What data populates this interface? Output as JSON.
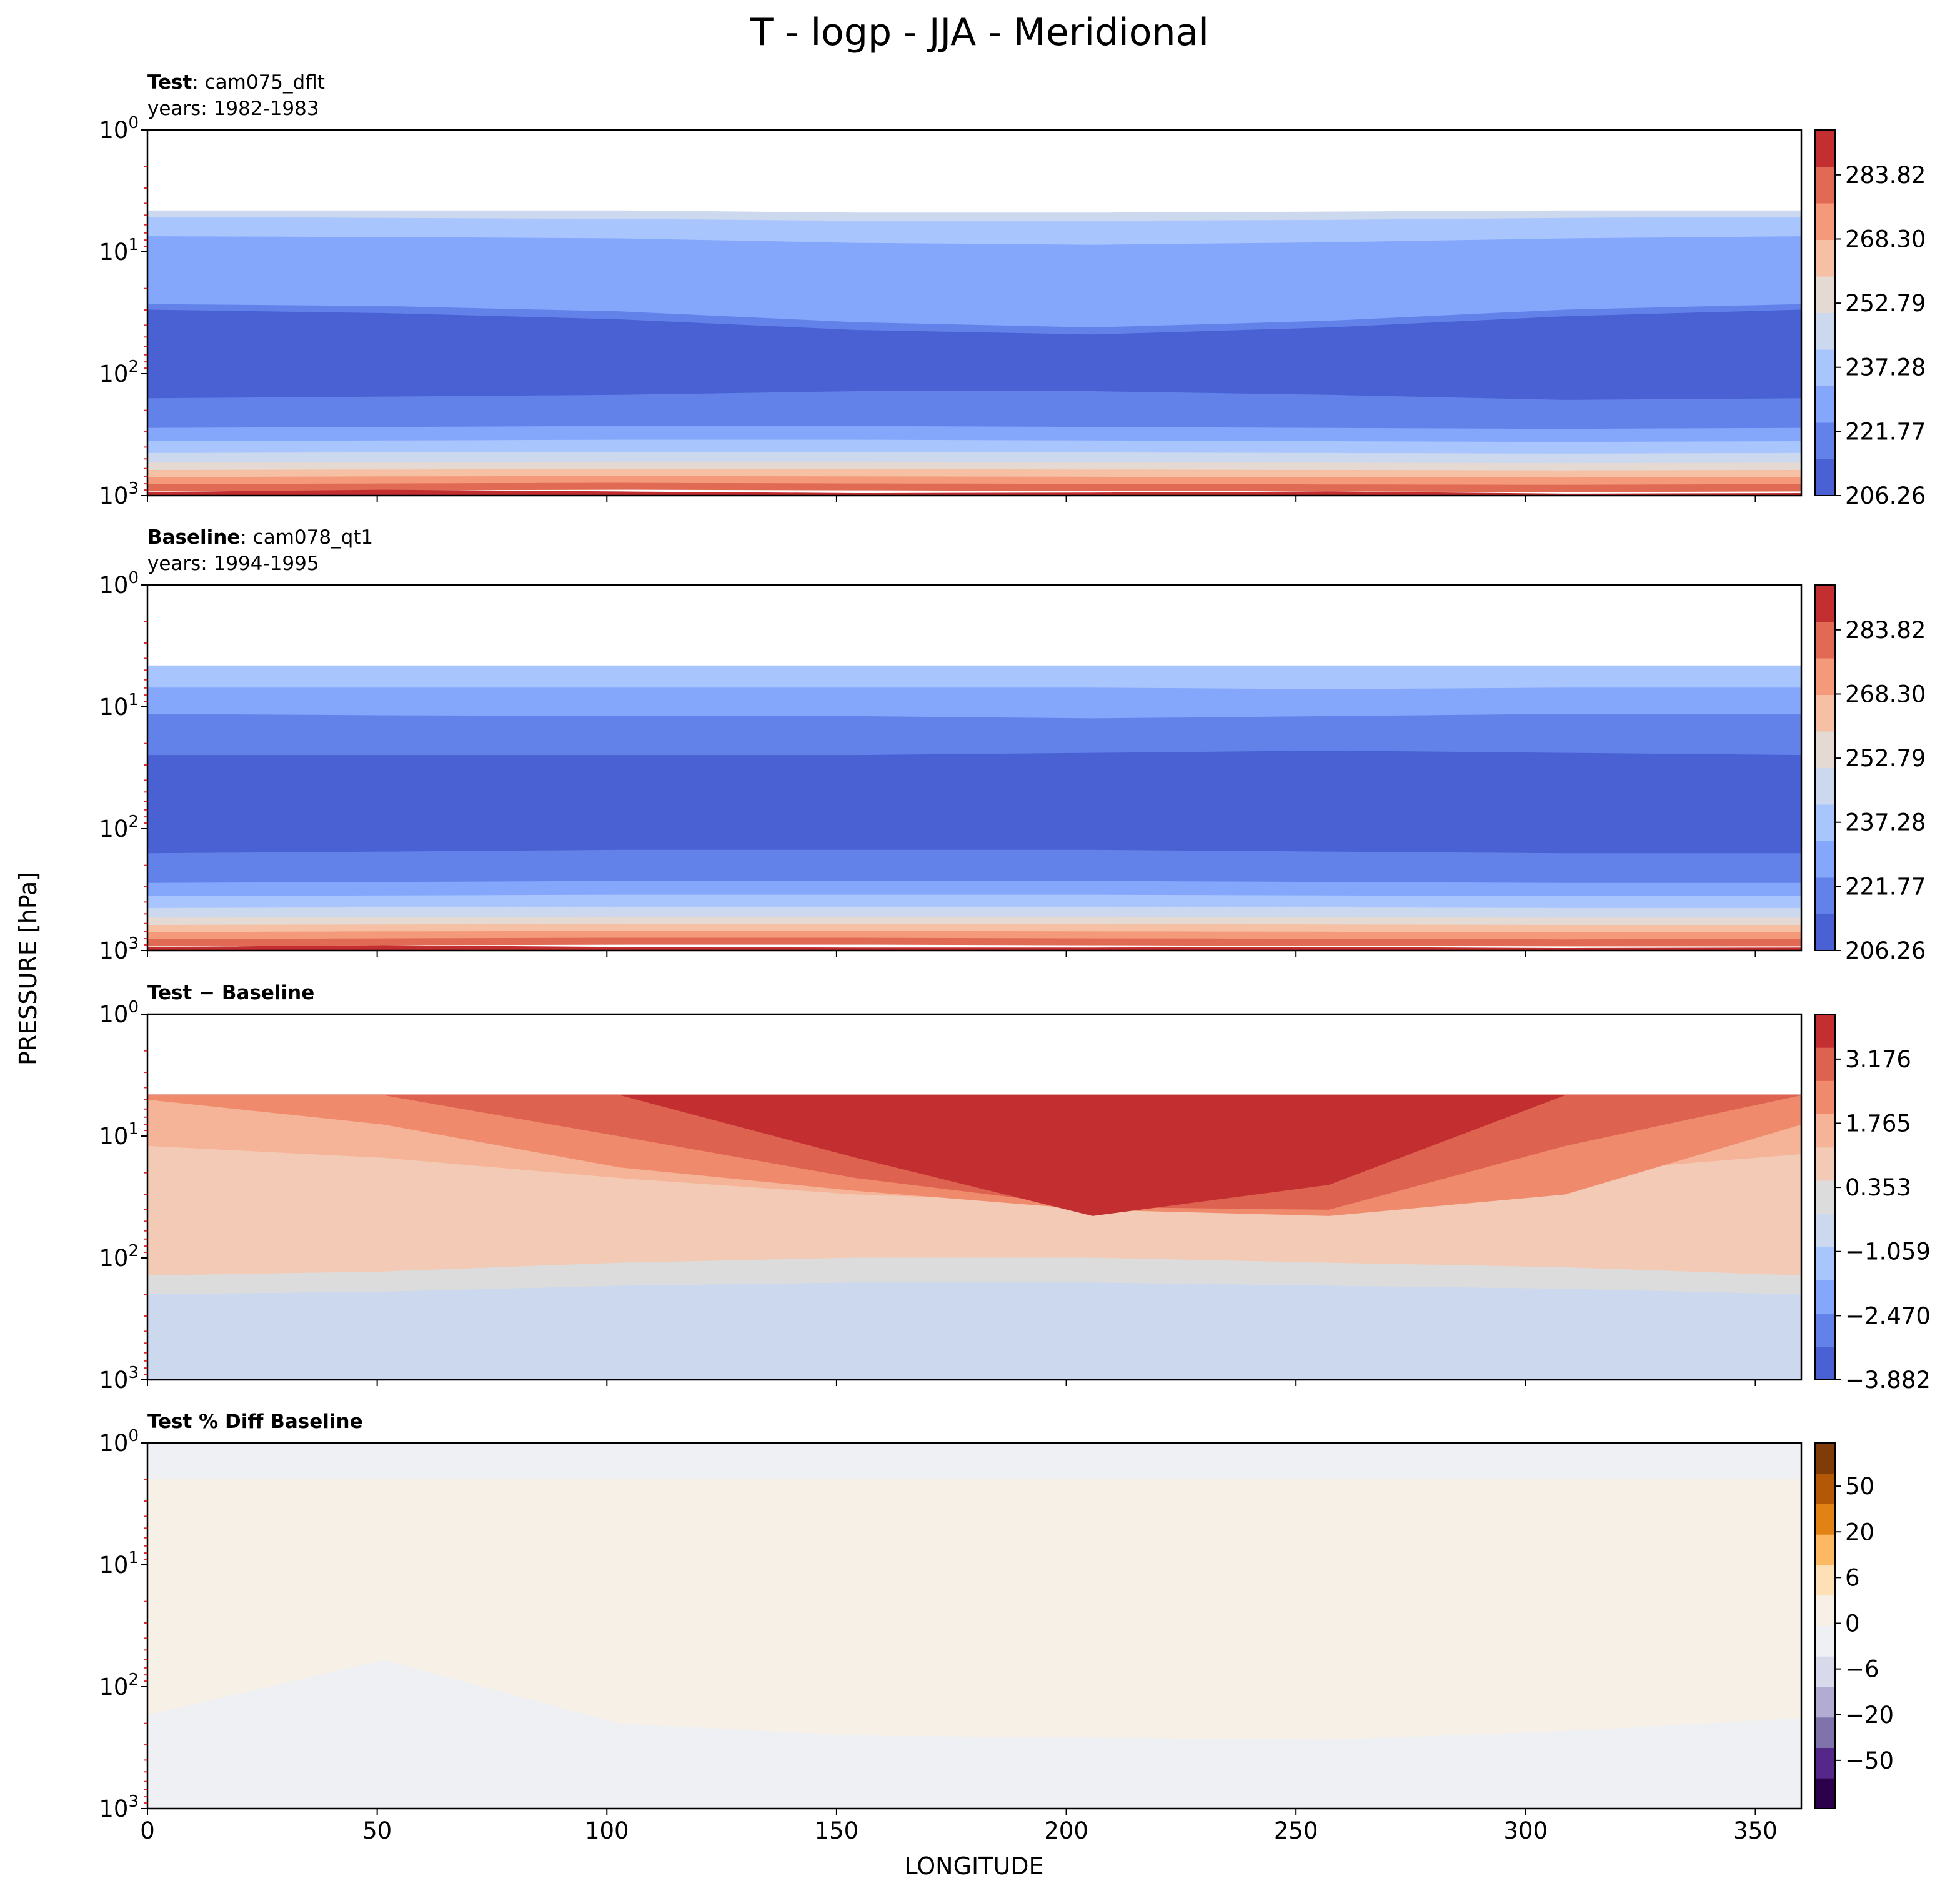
{
  "figure": {
    "title": "T - logp - JJA - Meridional",
    "ylabel": "PRESSURE [hPa]",
    "xlabel": "LONGITUDE"
  },
  "chart_data": [
    {
      "type": "heatmap",
      "id": "test",
      "header_bold": "Test",
      "header_rest": ": cam075_dflt",
      "header_line2": "years: 1982-1983",
      "x_range": [
        0,
        360
      ],
      "x_ticks": [
        0,
        50,
        100,
        150,
        200,
        250,
        300,
        350
      ],
      "y_scale": "log",
      "y_range_hpa": [
        1,
        1000
      ],
      "y_ticks": [
        {
          "base": "10",
          "exp": "0"
        },
        {
          "base": "10",
          "exp": "1"
        },
        {
          "base": "10",
          "exp": "2"
        },
        {
          "base": "10",
          "exp": "3"
        }
      ],
      "colorbar_ticks": [
        "206.26",
        "221.77",
        "237.28",
        "252.79",
        "268.30",
        "283.82"
      ],
      "colorbar_colors": [
        "#4961d2",
        "#6282ea",
        "#84a6fb",
        "#a9c5fe",
        "#cbd8ee",
        "#e4d9d3",
        "#f5c0a3",
        "#f49a7b",
        "#e06a53",
        "#c32e31"
      ],
      "contour_bands": [
        {
          "color": "#cbd8ee",
          "top": [
            4.6,
            4.6,
            4.6,
            4.8,
            4.8,
            4.7,
            4.6,
            4.6
          ],
          "bottom": [
            5.2,
            5.3,
            5.4,
            5.6,
            5.6,
            5.5,
            5.3,
            5.2
          ]
        },
        {
          "color": "#a9c5fe",
          "top": [
            5.2,
            5.3,
            5.4,
            5.6,
            5.6,
            5.5,
            5.3,
            5.2
          ],
          "bottom": [
            7.5,
            7.6,
            7.8,
            8.5,
            8.8,
            8.4,
            7.8,
            7.5
          ]
        },
        {
          "color": "#84a6fb",
          "top": [
            7.5,
            7.6,
            7.8,
            8.5,
            8.8,
            8.4,
            7.8,
            7.5
          ],
          "bottom": [
            27,
            28,
            31,
            38,
            42,
            37,
            30,
            27
          ]
        },
        {
          "color": "#6282ea",
          "top": [
            27,
            28,
            31,
            38,
            42,
            37,
            30,
            27
          ],
          "bottom": [
            170,
            165,
            160,
            150,
            150,
            160,
            175,
            170
          ]
        },
        {
          "color": "#4961d2",
          "top": [
            30,
            32,
            36,
            44,
            48,
            42,
            34,
            30
          ],
          "bottom": [
            160,
            155,
            150,
            140,
            140,
            150,
            165,
            160
          ]
        },
        {
          "color": "#6282ea",
          "top": [
            160,
            155,
            150,
            140,
            140,
            150,
            165,
            160
          ],
          "bottom": [
            280,
            275,
            270,
            270,
            275,
            280,
            285,
            280
          ]
        },
        {
          "color": "#84a6fb",
          "top": [
            280,
            275,
            270,
            270,
            275,
            280,
            285,
            280
          ],
          "bottom": [
            360,
            355,
            350,
            350,
            355,
            360,
            365,
            360
          ]
        },
        {
          "color": "#a9c5fe",
          "top": [
            360,
            355,
            350,
            350,
            355,
            360,
            365,
            360
          ],
          "bottom": [
            450,
            445,
            440,
            440,
            445,
            450,
            455,
            450
          ]
        },
        {
          "color": "#cbd8ee",
          "top": [
            450,
            445,
            440,
            440,
            445,
            450,
            455,
            450
          ],
          "bottom": [
            540,
            535,
            530,
            530,
            535,
            540,
            545,
            540
          ]
        },
        {
          "color": "#e4d9d3",
          "top": [
            540,
            535,
            530,
            530,
            535,
            540,
            545,
            540
          ],
          "bottom": [
            620,
            615,
            610,
            610,
            615,
            620,
            625,
            620
          ]
        },
        {
          "color": "#f5c0a3",
          "top": [
            620,
            615,
            610,
            610,
            615,
            620,
            625,
            620
          ],
          "bottom": [
            710,
            700,
            695,
            700,
            705,
            710,
            715,
            710
          ]
        },
        {
          "color": "#f49a7b",
          "top": [
            710,
            700,
            695,
            700,
            705,
            710,
            715,
            710
          ],
          "bottom": [
            810,
            800,
            790,
            800,
            805,
            815,
            820,
            810
          ]
        },
        {
          "color": "#e06a53",
          "top": [
            810,
            800,
            790,
            800,
            805,
            815,
            820,
            810
          ],
          "bottom": [
            920,
            900,
            890,
            900,
            910,
            920,
            930,
            920
          ]
        },
        {
          "color": "#c32e31",
          "top": [
            940,
            900,
            930,
            960,
            950,
            930,
            970,
            960
          ],
          "bottom": [
            990,
            990,
            990,
            990,
            990,
            990,
            990,
            990
          ]
        }
      ]
    },
    {
      "type": "heatmap",
      "id": "baseline",
      "header_bold": "Baseline",
      "header_rest": ": cam078_qt1",
      "header_line2": "years: 1994-1995",
      "x_range": [
        0,
        360
      ],
      "x_ticks": [
        0,
        50,
        100,
        150,
        200,
        250,
        300,
        350
      ],
      "y_scale": "log",
      "y_range_hpa": [
        1,
        1000
      ],
      "y_ticks": [
        {
          "base": "10",
          "exp": "0"
        },
        {
          "base": "10",
          "exp": "1"
        },
        {
          "base": "10",
          "exp": "2"
        },
        {
          "base": "10",
          "exp": "3"
        }
      ],
      "colorbar_ticks": [
        "206.26",
        "221.77",
        "237.28",
        "252.79",
        "268.30",
        "283.82"
      ],
      "colorbar_colors": [
        "#4961d2",
        "#6282ea",
        "#84a6fb",
        "#a9c5fe",
        "#cbd8ee",
        "#e4d9d3",
        "#f5c0a3",
        "#f49a7b",
        "#e06a53",
        "#c32e31"
      ],
      "contour_bands": [
        {
          "color": "#a9c5fe",
          "top": [
            4.6,
            4.6,
            4.6,
            4.6,
            4.6,
            4.6,
            4.6,
            4.6
          ],
          "bottom": [
            7.0,
            7.0,
            7.0,
            7.0,
            7.0,
            7.2,
            7.0,
            7.0
          ]
        },
        {
          "color": "#84a6fb",
          "top": [
            7.0,
            7.0,
            7.0,
            7.0,
            7.0,
            7.2,
            7.0,
            7.0
          ],
          "bottom": [
            11.5,
            11.8,
            12.0,
            12.0,
            12.5,
            12.0,
            11.5,
            11.5
          ]
        },
        {
          "color": "#6282ea",
          "top": [
            11.5,
            11.8,
            12.0,
            12.0,
            12.5,
            12.0,
            11.5,
            11.5
          ],
          "bottom": [
            170,
            165,
            160,
            160,
            160,
            165,
            170,
            170
          ]
        },
        {
          "color": "#4961d2",
          "top": [
            25,
            25,
            25,
            25,
            24,
            23,
            24,
            25
          ],
          "bottom": [
            160,
            155,
            150,
            150,
            150,
            155,
            160,
            160
          ]
        },
        {
          "color": "#6282ea",
          "top": [
            160,
            155,
            150,
            150,
            150,
            155,
            160,
            160
          ],
          "bottom": [
            280,
            275,
            270,
            270,
            270,
            275,
            280,
            280
          ]
        },
        {
          "color": "#84a6fb",
          "top": [
            280,
            275,
            270,
            270,
            270,
            275,
            280,
            280
          ],
          "bottom": [
            360,
            355,
            350,
            350,
            350,
            355,
            360,
            360
          ]
        },
        {
          "color": "#a9c5fe",
          "top": [
            360,
            355,
            350,
            350,
            350,
            355,
            360,
            360
          ],
          "bottom": [
            450,
            445,
            440,
            440,
            440,
            445,
            450,
            450
          ]
        },
        {
          "color": "#cbd8ee",
          "top": [
            450,
            445,
            440,
            440,
            440,
            445,
            450,
            450
          ],
          "bottom": [
            540,
            535,
            530,
            530,
            530,
            535,
            540,
            540
          ]
        },
        {
          "color": "#e4d9d3",
          "top": [
            540,
            535,
            530,
            530,
            530,
            535,
            540,
            540
          ],
          "bottom": [
            620,
            615,
            610,
            610,
            610,
            615,
            620,
            620
          ]
        },
        {
          "color": "#f5c0a3",
          "top": [
            620,
            615,
            610,
            610,
            610,
            615,
            620,
            620
          ],
          "bottom": [
            710,
            700,
            695,
            695,
            700,
            705,
            710,
            710
          ]
        },
        {
          "color": "#f49a7b",
          "top": [
            710,
            700,
            695,
            695,
            700,
            705,
            710,
            710
          ],
          "bottom": [
            810,
            800,
            790,
            790,
            800,
            805,
            815,
            810
          ]
        },
        {
          "color": "#e06a53",
          "top": [
            810,
            800,
            790,
            790,
            800,
            805,
            815,
            810
          ],
          "bottom": [
            920,
            900,
            890,
            890,
            900,
            910,
            920,
            920
          ]
        },
        {
          "color": "#c32e31",
          "top": [
            940,
            910,
            940,
            950,
            950,
            940,
            960,
            950
          ],
          "bottom": [
            990,
            990,
            990,
            990,
            990,
            990,
            990,
            990
          ]
        }
      ]
    },
    {
      "type": "heatmap",
      "id": "diff",
      "header_bold": "Test − Baseline",
      "header_rest": "",
      "header_line2": "",
      "x_range": [
        0,
        360
      ],
      "x_ticks": [
        0,
        50,
        100,
        150,
        200,
        250,
        300,
        350
      ],
      "y_scale": "log",
      "y_range_hpa": [
        1,
        1000
      ],
      "y_ticks": [
        {
          "base": "10",
          "exp": "0"
        },
        {
          "base": "10",
          "exp": "1"
        },
        {
          "base": "10",
          "exp": "2"
        },
        {
          "base": "10",
          "exp": "3"
        }
      ],
      "colorbar_ticks": [
        "−3.882",
        "−2.470",
        "−1.059",
        "0.353",
        "1.765",
        "3.176"
      ],
      "colorbar_colors": [
        "#4961d2",
        "#6282ea",
        "#84a6fb",
        "#a9c5fe",
        "#cbd8ee",
        "#dddcdc",
        "#f2cab5",
        "#f5b498",
        "#ef8a6c",
        "#dd6250",
        "#c32e31"
      ],
      "contour_bands": [
        {
          "color": "#f2cab5",
          "top": [
            4.6,
            4.6,
            4.6,
            4.6,
            4.6,
            4.6,
            4.6,
            4.6
          ],
          "bottom": [
            140,
            130,
            110,
            100,
            100,
            110,
            120,
            140
          ]
        },
        {
          "color": "#f5b498",
          "top": [
            4.6,
            4.6,
            4.6,
            4.6,
            4.6,
            4.6,
            4.6,
            4.6
          ],
          "bottom": [
            12,
            15,
            22,
            30,
            35,
            30,
            20,
            14
          ]
        },
        {
          "color": "#ef8a6c",
          "top": [
            4.6,
            4.6,
            4.6,
            4.6,
            4.6,
            4.6,
            4.6,
            4.6
          ],
          "bottom": [
            5.0,
            8,
            18,
            28,
            40,
            45,
            30,
            8
          ]
        },
        {
          "color": "#dd6250",
          "top": [
            4.6,
            4.6,
            4.6,
            4.6,
            4.6,
            4.6,
            4.6,
            4.6
          ],
          "bottom": [
            4.6,
            4.6,
            10,
            22,
            38,
            40,
            12,
            4.6
          ]
        },
        {
          "color": "#c32e31",
          "top": [
            4.6,
            4.6,
            4.6,
            4.6,
            4.6,
            4.6,
            4.6,
            4.6
          ],
          "bottom": [
            4.6,
            4.6,
            4.6,
            15,
            45,
            25,
            4.6,
            4.6
          ]
        },
        {
          "color": "#dddcdc",
          "top": [
            140,
            130,
            110,
            100,
            100,
            110,
            120,
            140
          ],
          "bottom": [
            200,
            190,
            170,
            160,
            160,
            170,
            180,
            200
          ]
        },
        {
          "color": "#cbd8ee",
          "top": [
            200,
            190,
            170,
            160,
            160,
            170,
            180,
            200
          ],
          "bottom": [
            990,
            990,
            990,
            990,
            990,
            990,
            990,
            990
          ]
        }
      ]
    },
    {
      "type": "heatmap",
      "id": "pctdiff",
      "header_bold": "Test % Diff Baseline",
      "header_rest": "",
      "header_line2": "",
      "x_range": [
        0,
        360
      ],
      "x_ticks": [
        0,
        50,
        100,
        150,
        200,
        250,
        300,
        350
      ],
      "x_tick_labels_shown": true,
      "y_scale": "log",
      "y_range_hpa": [
        1,
        1000
      ],
      "y_ticks": [
        {
          "base": "10",
          "exp": "0"
        },
        {
          "base": "10",
          "exp": "1"
        },
        {
          "base": "10",
          "exp": "2"
        },
        {
          "base": "10",
          "exp": "3"
        }
      ],
      "colorbar_ticks": [
        "−50",
        "−20",
        "−6",
        "0",
        "6",
        "20",
        "50"
      ],
      "colorbar_colors": [
        "#2d004b",
        "#542788",
        "#8073ac",
        "#b2abd2",
        "#d8daeb",
        "#eef0f4",
        "#f7f0e6",
        "#fee0b6",
        "#fdb863",
        "#e08214",
        "#b35806",
        "#7f3b08"
      ],
      "contour_bands": [
        {
          "color": "#eef0f4",
          "top": [
            1,
            1,
            1,
            1,
            1,
            1,
            1,
            1
          ],
          "bottom": [
            990,
            990,
            990,
            990,
            990,
            990,
            990,
            990
          ]
        },
        {
          "color": "#f7f0e6",
          "top": [
            2.0,
            2.0,
            2.0,
            2.0,
            2.0,
            2.0,
            2.0,
            2.0
          ],
          "bottom": [
            170,
            60,
            200,
            250,
            260,
            270,
            230,
            180
          ]
        }
      ]
    }
  ]
}
